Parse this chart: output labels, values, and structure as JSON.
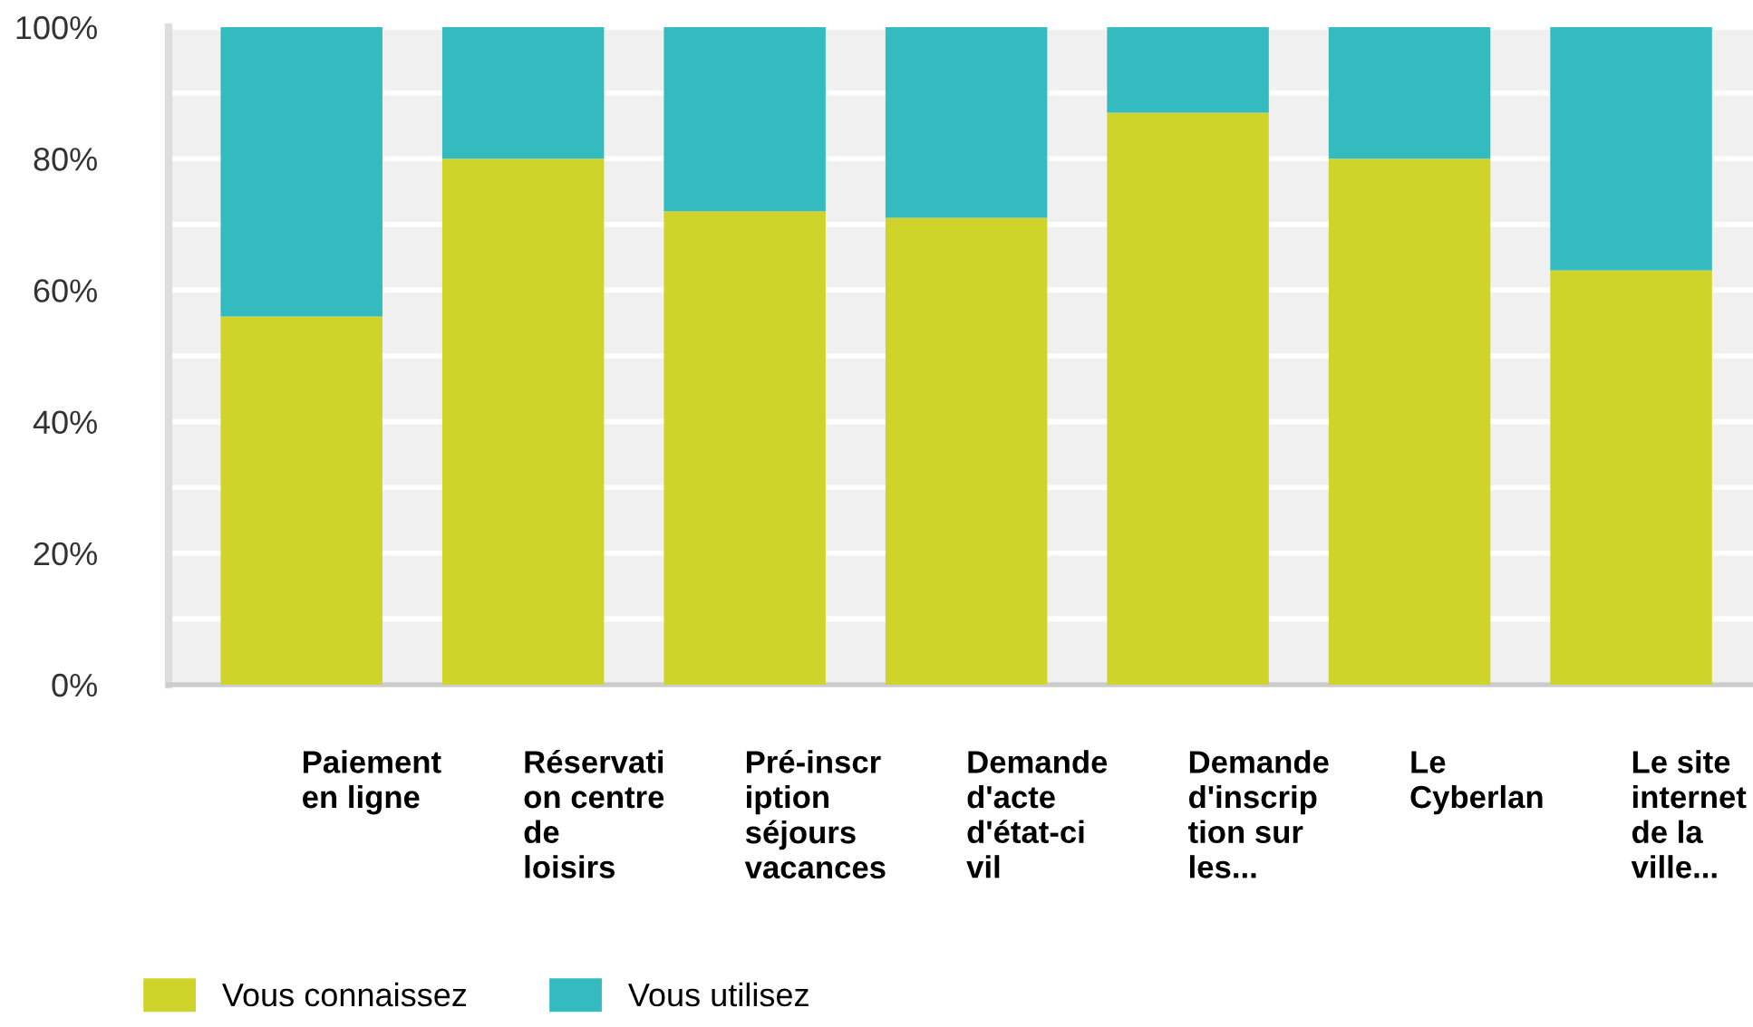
{
  "chart_data": {
    "type": "bar",
    "stacked": true,
    "categories": [
      "Paiement\nen ligne",
      "Réservati\non centre\nde\nloisirs",
      "Pré-inscr\niption\nséjours\nvacances",
      "Demande\nd'acte\nd'état-ci\nvil",
      "Demande\nd'inscrip\ntion sur\nles...",
      "Le\nCyberlan",
      "Le site\ninternet\nde la\nville..."
    ],
    "series": [
      {
        "name": "Vous connaissez",
        "color": "#cfd42a",
        "values": [
          56,
          80,
          72,
          71,
          87,
          80,
          63
        ]
      },
      {
        "name": "Vous utilisez",
        "color": "#33bbbf",
        "values": [
          44,
          20,
          28,
          29,
          13,
          20,
          37
        ]
      }
    ],
    "ylim": [
      0,
      100
    ],
    "yticks": [
      {
        "value": 0,
        "label": "0%"
      },
      {
        "value": 10,
        "label": null
      },
      {
        "value": 20,
        "label": "20%"
      },
      {
        "value": 30,
        "label": null
      },
      {
        "value": 40,
        "label": "40%"
      },
      {
        "value": 50,
        "label": null
      },
      {
        "value": 60,
        "label": "60%"
      },
      {
        "value": 70,
        "label": null
      },
      {
        "value": 80,
        "label": "80%"
      },
      {
        "value": 90,
        "label": null
      },
      {
        "value": 100,
        "label": "100%"
      }
    ],
    "grid": "y",
    "legend": "bottom left"
  }
}
